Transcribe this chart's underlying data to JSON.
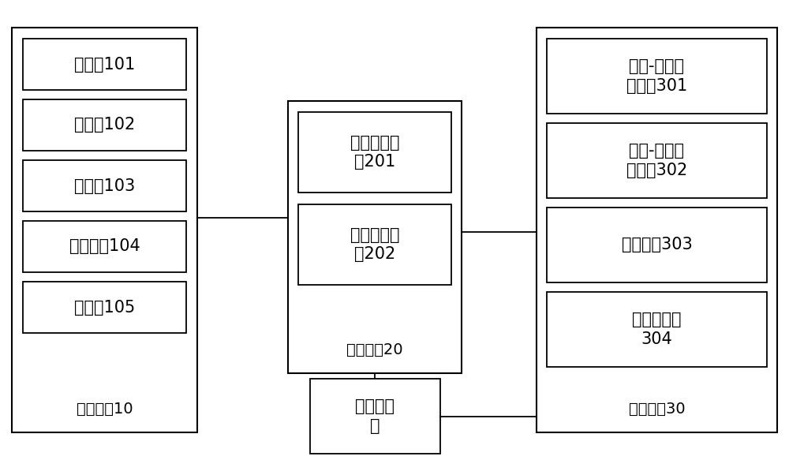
{
  "bg_color": "#ffffff",
  "line_color": "#000000",
  "text_color": "#000000",
  "font_size": 15,
  "label_font_size": 14,
  "fig_width": 10.0,
  "fig_height": 5.83,
  "left_module_label": "发电模块10",
  "left_boxes": [
    {
      "label": "发动机101"
    },
    {
      "label": "变速箱102"
    },
    {
      "label": "分动箱103"
    },
    {
      "label": "传动单元104"
    },
    {
      "label": "发电机105"
    }
  ],
  "center_module_label": "控制模块20",
  "center_boxes": [
    {
      "label": "功率限制单\n元201"
    },
    {
      "label": "充电管理单\n元202"
    }
  ],
  "bottom_box_label": "被充电车\n辆",
  "right_module_label": "充电模块30",
  "right_boxes": [
    {
      "label": "交流-直流转\n换单元301"
    },
    {
      "label": "直流-直流转\n换单元302"
    },
    {
      "label": "桩控制器303"
    },
    {
      "label": "充电控制板\n304"
    }
  ]
}
